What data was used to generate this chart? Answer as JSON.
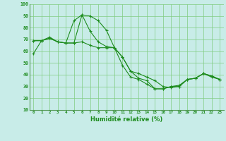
{
  "xlabel": "Humidité relative (%)",
  "bg_color": "#c8ece8",
  "grid_color": "#80cc80",
  "line_color": "#1e8c1e",
  "xlim": [
    -0.5,
    23.5
  ],
  "ylim": [
    10,
    100
  ],
  "xticks": [
    0,
    1,
    2,
    3,
    4,
    5,
    6,
    7,
    8,
    9,
    10,
    11,
    12,
    13,
    14,
    15,
    16,
    17,
    18,
    19,
    20,
    21,
    22,
    23
  ],
  "yticks": [
    10,
    20,
    30,
    40,
    50,
    60,
    70,
    80,
    90,
    100
  ],
  "line1_y": [
    58,
    69,
    72,
    68,
    67,
    67,
    91,
    90,
    86,
    78,
    63,
    48,
    38,
    36,
    32,
    28,
    28,
    30,
    31,
    36,
    37,
    41,
    38,
    36
  ],
  "line2_y": [
    69,
    69,
    71,
    68,
    67,
    86,
    91,
    77,
    68,
    64,
    63,
    55,
    43,
    37,
    35,
    28,
    28,
    30,
    30,
    36,
    37,
    41,
    39,
    36
  ],
  "line3_y": [
    69,
    69,
    71,
    68,
    67,
    67,
    68,
    65,
    63,
    63,
    63,
    55,
    43,
    41,
    38,
    35,
    30,
    29,
    30,
    36,
    37,
    41,
    39,
    36
  ]
}
